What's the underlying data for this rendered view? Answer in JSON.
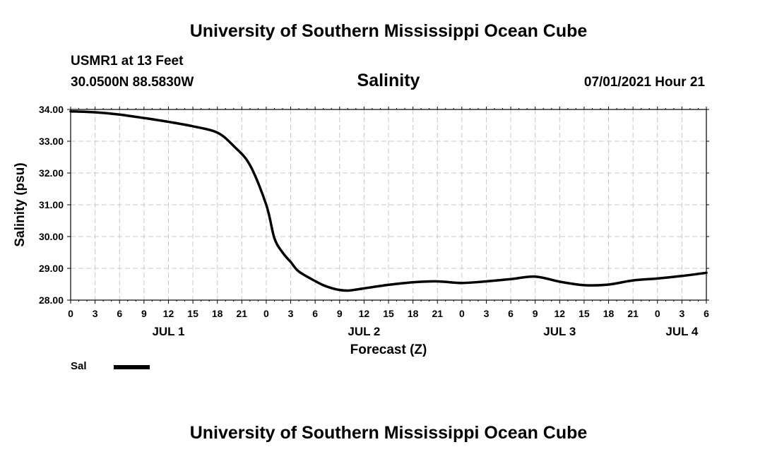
{
  "header": {
    "title": "University of Southern Mississippi Ocean Cube",
    "station": "USMR1 at 13 Feet",
    "coordinates": "30.0500N  88.5830W",
    "variable": "Salinity",
    "datestamp": "07/01/2021 Hour 21"
  },
  "footer": {
    "title": "University of Southern Mississippi Ocean Cube"
  },
  "legend": {
    "label": "Sal",
    "color": "#000000"
  },
  "chart_data": {
    "type": "line",
    "title": "Salinity",
    "xlabel": "Forecast (Z)",
    "ylabel": "Salinity (psu)",
    "ylim": [
      28.0,
      34.0
    ],
    "xlim_hours": [
      0,
      78
    ],
    "y_ticks": [
      "28.00",
      "29.00",
      "30.00",
      "31.00",
      "32.00",
      "33.00",
      "34.00"
    ],
    "x_tick_labels": [
      "0",
      "3",
      "6",
      "9",
      "12",
      "15",
      "18",
      "21",
      "0",
      "3",
      "6",
      "9",
      "12",
      "15",
      "18",
      "21",
      "0",
      "3",
      "6",
      "9",
      "12",
      "15",
      "18",
      "21",
      "0",
      "3",
      "6"
    ],
    "date_labels": [
      {
        "label": "JUL 1",
        "hour": 12
      },
      {
        "label": "JUL 2",
        "hour": 36
      },
      {
        "label": "JUL 3",
        "hour": 60
      },
      {
        "label": "JUL 4",
        "hour": 75
      }
    ],
    "grid": true,
    "series": [
      {
        "name": "Sal",
        "color": "#000000",
        "hours": [
          0,
          3,
          6,
          9,
          12,
          15,
          18,
          20,
          22,
          24,
          25,
          26,
          27,
          28,
          30,
          31,
          32,
          33,
          34,
          35,
          36,
          39,
          42,
          45,
          48,
          51,
          54,
          57,
          60,
          63,
          66,
          69,
          72,
          75,
          78
        ],
        "values": [
          33.94,
          33.91,
          33.84,
          33.73,
          33.61,
          33.47,
          33.27,
          32.85,
          32.25,
          31.0,
          29.95,
          29.5,
          29.2,
          28.9,
          28.6,
          28.47,
          28.38,
          28.32,
          28.3,
          28.33,
          28.37,
          28.48,
          28.56,
          28.59,
          28.54,
          28.59,
          28.66,
          28.74,
          28.58,
          28.47,
          28.49,
          28.62,
          28.68,
          28.76,
          28.86
        ]
      }
    ]
  }
}
